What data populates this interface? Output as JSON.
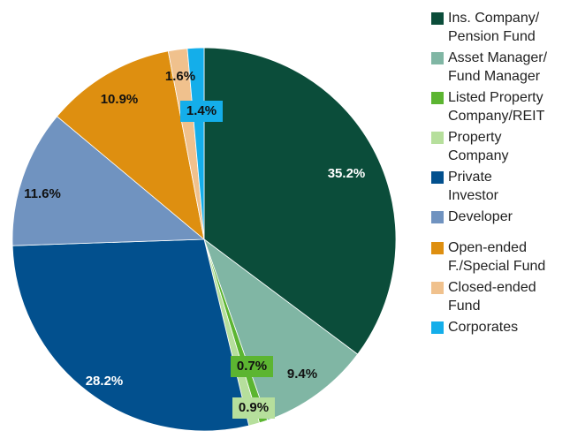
{
  "chart_data": {
    "type": "pie",
    "categories": [
      "Ins. Company/\nPension Fund",
      "Asset Manager/\nFund Manager",
      "Listed Property\nCompany/REIT",
      "Property\nCompany",
      "Private\nInvestor",
      "Developer",
      "Open-ended\nF./Special Fund",
      "Closed-ended\nFund",
      "Corporates"
    ],
    "values": [
      35.2,
      9.4,
      0.7,
      0.9,
      28.2,
      11.6,
      10.9,
      1.6,
      1.4
    ],
    "value_labels": [
      "35.2%",
      "9.4%",
      "0.7%",
      "0.9%",
      "28.2%",
      "11.6%",
      "10.9%",
      "1.6%",
      "1.4%"
    ],
    "colors": [
      "#0b4d3a",
      "#80b6a4",
      "#5cb531",
      "#b6df9c",
      "#02508e",
      "#7093c0",
      "#de8f10",
      "#f0c18d",
      "#14aeea"
    ],
    "legend": "right"
  }
}
